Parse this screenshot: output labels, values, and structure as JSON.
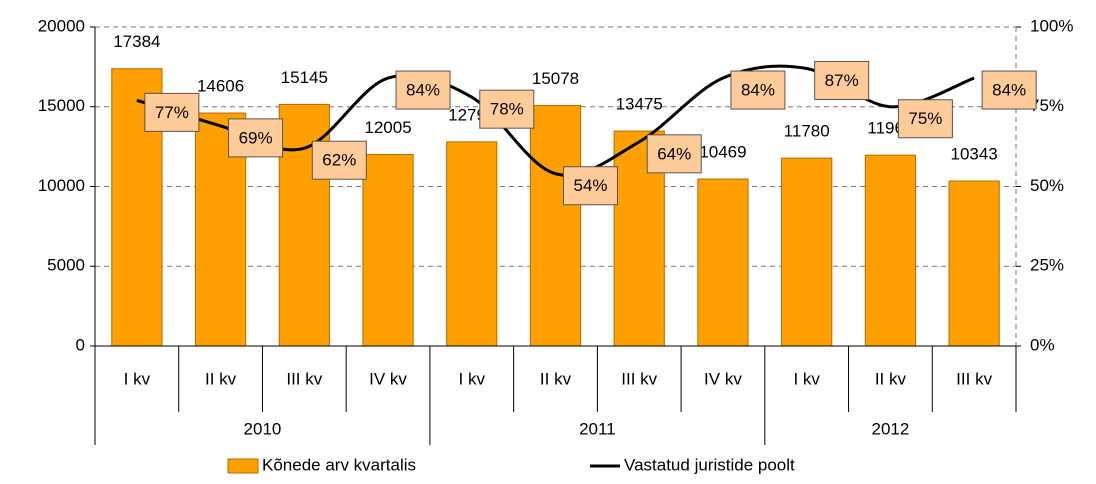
{
  "chart_data": {
    "type": "bar_line",
    "category_groups": [
      {
        "label": "2010",
        "categories": [
          "I kv",
          "II kv",
          "III kv",
          "IV kv"
        ]
      },
      {
        "label": "2011",
        "categories": [
          "I kv",
          "II kv",
          "III kv",
          "IV kv"
        ]
      },
      {
        "label": "2012",
        "categories": [
          "I kv",
          "II kv",
          "III kv"
        ]
      }
    ],
    "series": [
      {
        "name": "Kõnede arv kvartalis",
        "type": "bar",
        "color": "#ff9f00",
        "values": [
          17384,
          14606,
          15145,
          12005,
          12797,
          15078,
          13475,
          10469,
          11780,
          11965,
          10343
        ]
      },
      {
        "name": "Vastatud juristide poolt",
        "type": "line",
        "axis": "y2",
        "color": "#000000",
        "values": [
          77,
          69,
          62,
          84,
          78,
          54,
          64,
          84,
          87,
          75,
          84
        ],
        "value_labels": [
          "77%",
          "69%",
          "62%",
          "84%",
          "78%",
          "54%",
          "64%",
          "84%",
          "87%",
          "75%",
          "84%"
        ]
      }
    ],
    "ylim": [
      0,
      20000
    ],
    "yticks": [
      0,
      5000,
      10000,
      15000,
      20000
    ],
    "y2lim": [
      0,
      100
    ],
    "y2ticks": [
      {
        "value": 0,
        "label": "0%"
      },
      {
        "value": 25,
        "label": "25%"
      },
      {
        "value": 50,
        "label": "50%"
      },
      {
        "value": 75,
        "label": "75%"
      },
      {
        "value": 100,
        "label": "100%"
      }
    ],
    "grid": true,
    "legend": "bottom"
  }
}
